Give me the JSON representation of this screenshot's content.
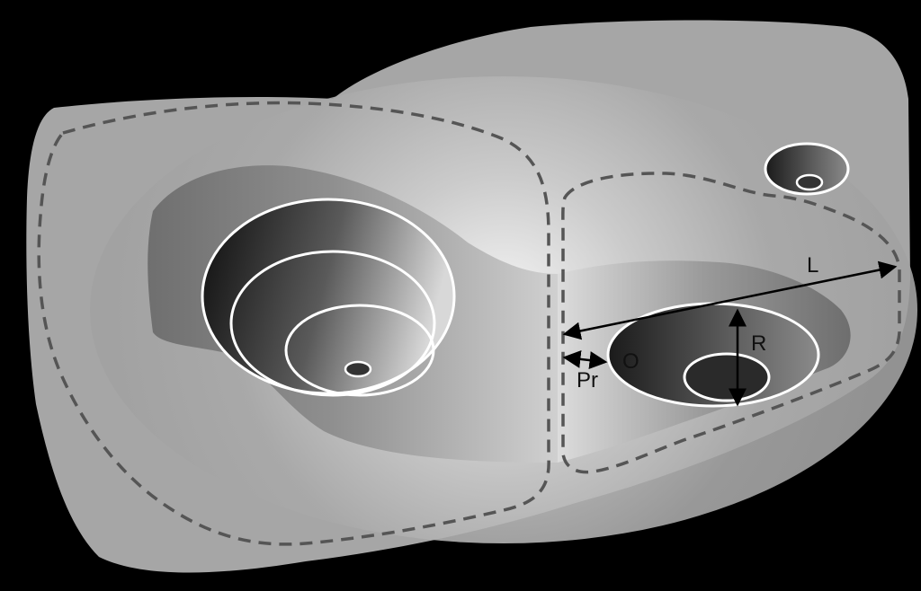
{
  "labels": {
    "L": "L",
    "R": "R",
    "Pr": "Pr",
    "O": "O"
  },
  "colors": {
    "background": "#000000",
    "island": "#a7a7a7",
    "shelf": "#8a8a8a",
    "dashed_boundary": "#555555",
    "contour": "#ffffff",
    "arrow": "#000000"
  }
}
